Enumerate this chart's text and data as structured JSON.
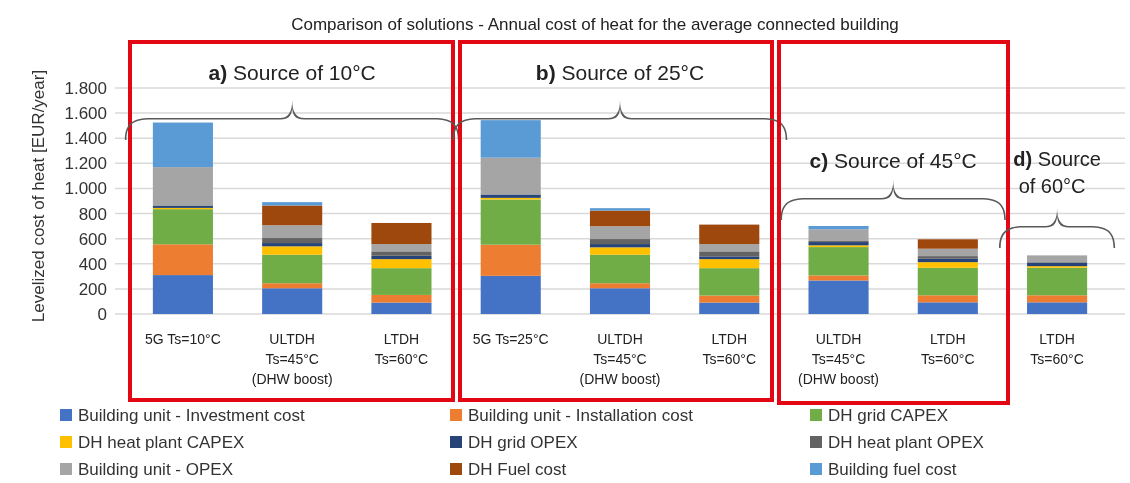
{
  "chart_data": {
    "type": "bar",
    "stacked": true,
    "title": "Comparison of solutions - Annual cost of heat for the average connected building",
    "ylabel": "Levelized cost of heat [EUR/year]",
    "categories": [
      "5G Ts=10°C",
      "ULTDH Ts=45°C (DHW boost)",
      "LTDH Ts=60°C",
      "5G Ts=25°C",
      "ULTDH Ts=45°C (DHW boost)",
      "LTDH Ts=60°C",
      "ULTDH Ts=45°C (DHW boost)",
      "LTDH Ts=60°C",
      "LTDH Ts=60°C"
    ],
    "series": [
      {
        "name": "Building unit - Investment cost",
        "color": "#4472c4",
        "values": [
          310,
          205,
          91,
          304,
          205,
          91,
          267,
          93,
          93
        ]
      },
      {
        "name": "Building unit - Installation cost",
        "color": "#ed7d31",
        "values": [
          245,
          40,
          61,
          248,
          40,
          56,
          40,
          56,
          56
        ]
      },
      {
        "name": "DH grid CAPEX",
        "color": "#70ad47",
        "values": [
          280,
          227,
          213,
          360,
          227,
          218,
          226,
          219,
          219
        ]
      },
      {
        "name": "DH heat plant CAPEX",
        "color": "#ffc000",
        "values": [
          10,
          67,
          72,
          13,
          59,
          72,
          14,
          45,
          13
        ]
      },
      {
        "name": "DH grid  OPEX",
        "color": "#264478",
        "values": [
          15,
          26,
          27,
          27,
          26,
          22,
          26,
          27,
          27
        ]
      },
      {
        "name": "DH heat plant OPEX",
        "color": "#636363",
        "values": [
          5,
          40,
          35,
          0,
          40,
          40,
          8,
          21,
          5
        ]
      },
      {
        "name": "Building unit - OPEX",
        "color": "#a5a5a5",
        "values": [
          305,
          102,
          58,
          293,
          102,
          58,
          94,
          59,
          54
        ]
      },
      {
        "name": "DH Fuel cost",
        "color": "#9e480e",
        "values": [
          0,
          157,
          168,
          0,
          125,
          155,
          0,
          75,
          0
        ]
      },
      {
        "name": "Building fuel cost",
        "color": "#5b9bd5",
        "values": [
          355,
          27,
          0,
          299,
          19,
          0,
          26,
          0,
          0
        ]
      }
    ],
    "ylim": [
      0,
      1800
    ],
    "yticks": [
      0,
      200,
      400,
      600,
      800,
      {
        "value": 1000,
        "label": "1.000"
      },
      {
        "value": 1200,
        "label": "1.200"
      },
      {
        "value": 1400,
        "label": "1.400"
      },
      {
        "value": 1600,
        "label": "1.600"
      },
      {
        "value": 1800,
        "label": "1.800"
      }
    ],
    "grid": "y",
    "legend": "bottom",
    "annotations": [
      "a) Source of 10°C",
      "b) Source of 25°C",
      "c) Source of 45°C",
      "d) Source of 60°C"
    ]
  }
}
